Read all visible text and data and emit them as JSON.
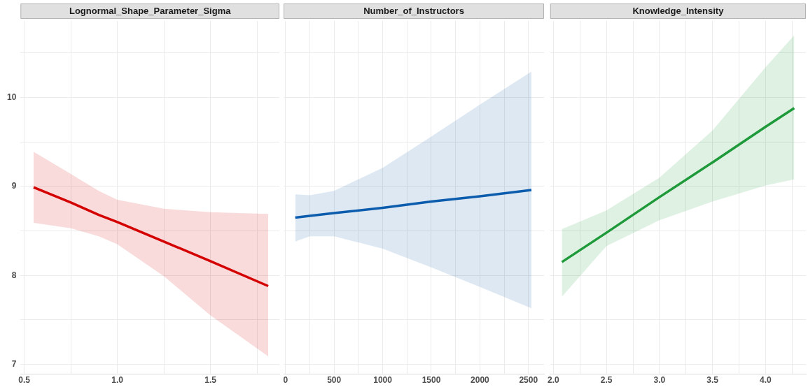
{
  "chart_data": [
    {
      "type": "line",
      "title": "Lognormal_Shape_Parameter_Sigma",
      "x": [
        0.55,
        0.75,
        0.9,
        1.0,
        1.25,
        1.5,
        1.81
      ],
      "series": [
        {
          "color": "#d40000",
          "values": [
            8.99,
            8.82,
            8.68,
            8.6,
            8.38,
            8.16,
            7.88
          ],
          "lower": [
            8.59,
            8.53,
            8.44,
            8.35,
            7.99,
            7.55,
            7.09
          ],
          "upper": [
            9.39,
            9.14,
            8.95,
            8.85,
            8.75,
            8.71,
            8.69
          ]
        }
      ],
      "xlim": [
        0.48,
        1.87
      ],
      "xticks": [
        0.5,
        {
          "value": 0.75,
          "label": null
        },
        {
          "value": 1,
          "label": "1.0"
        },
        {
          "value": 1.25,
          "label": null
        },
        1.5,
        {
          "value": 1.75,
          "label": null
        }
      ],
      "ylim": [
        6.89,
        10.86
      ],
      "yticks": [
        7,
        {
          "value": 7.5,
          "label": null
        },
        8,
        {
          "value": 8.5,
          "label": null
        },
        9,
        {
          "value": 9.5,
          "label": null
        },
        10,
        {
          "value": 10.5,
          "label": null
        }
      ],
      "grid": true,
      "legend": false,
      "marker": "none",
      "line_style": "solid"
    },
    {
      "type": "line",
      "title": "Number_of_Instructors",
      "x": [
        100,
        250,
        500,
        1000,
        1500,
        2000,
        2530
      ],
      "series": [
        {
          "color": "#0b5cad",
          "values": [
            8.65,
            8.67,
            8.7,
            8.76,
            8.83,
            8.89,
            8.96
          ],
          "lower": [
            8.38,
            8.44,
            8.44,
            8.3,
            8.09,
            7.87,
            7.63
          ],
          "upper": [
            8.91,
            8.9,
            8.95,
            9.21,
            9.56,
            9.92,
            10.29
          ]
        }
      ],
      "xlim": [
        -20,
        2660
      ],
      "xticks": [
        0,
        {
          "value": 250,
          "label": null
        },
        500,
        {
          "value": 750,
          "label": null
        },
        1000,
        {
          "value": 1250,
          "label": null
        },
        1500,
        {
          "value": 1750,
          "label": null
        },
        2000,
        {
          "value": 2250,
          "label": null
        },
        2500
      ],
      "ylim": [
        6.89,
        10.86
      ],
      "yticks": [
        7,
        {
          "value": 7.5,
          "label": null
        },
        8,
        {
          "value": 8.5,
          "label": null
        },
        9,
        {
          "value": 9.5,
          "label": null
        },
        10,
        {
          "value": 10.5,
          "label": null
        }
      ],
      "tick_labels": "x",
      "grid": true,
      "legend": false,
      "marker": "none",
      "line_style": "solid"
    },
    {
      "type": "line",
      "title": "Knowledge_Intensity",
      "x": [
        2.08,
        2.5,
        3.0,
        3.5,
        4.0,
        4.27
      ],
      "series": [
        {
          "color": "#1f9a3a",
          "values": [
            8.15,
            8.48,
            8.88,
            9.27,
            9.67,
            9.88
          ],
          "lower": [
            7.76,
            8.33,
            8.62,
            8.83,
            9.01,
            9.08
          ],
          "upper": [
            8.52,
            8.73,
            9.1,
            9.63,
            10.34,
            10.7
          ]
        }
      ],
      "xlim": [
        1.97,
        4.38
      ],
      "xticks": [
        {
          "value": 2,
          "label": "2.0"
        },
        {
          "value": 2.25,
          "label": null
        },
        2.5,
        {
          "value": 2.75,
          "label": null
        },
        {
          "value": 3,
          "label": "3.0"
        },
        {
          "value": 3.25,
          "label": null
        },
        3.5,
        {
          "value": 3.75,
          "label": null
        },
        {
          "value": 4,
          "label": "4.0"
        },
        {
          "value": 4.25,
          "label": null
        }
      ],
      "ylim": [
        6.89,
        10.86
      ],
      "yticks": [
        7,
        {
          "value": 7.5,
          "label": null
        },
        8,
        {
          "value": 8.5,
          "label": null
        },
        9,
        {
          "value": 9.5,
          "label": null
        },
        10,
        {
          "value": 10.5,
          "label": null
        }
      ],
      "tick_labels": "x",
      "grid": true,
      "legend": false,
      "marker": "none",
      "line_style": "solid"
    }
  ]
}
